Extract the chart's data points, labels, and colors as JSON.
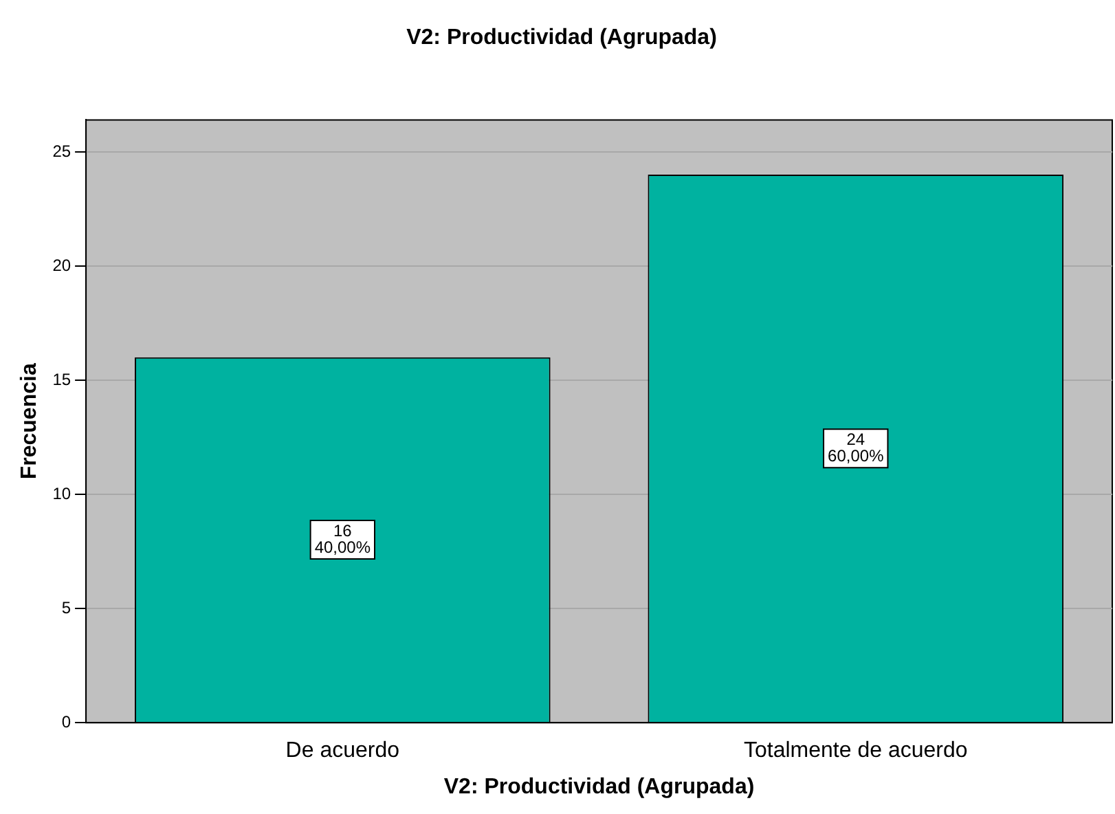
{
  "chart_data": {
    "type": "bar",
    "title": "V2: Productividad (Agrupada)",
    "xlabel": "V2: Productividad (Agrupada)",
    "ylabel": "Frecuencia",
    "categories": [
      "De acuerdo",
      "Totalmente de acuerdo"
    ],
    "values": [
      16,
      24
    ],
    "color": "#00b2a0",
    "value_labels": [
      "16\n40,00%",
      "24\n60,00%"
    ],
    "ylim": [
      0,
      26.4
    ],
    "yticks": [
      0,
      5,
      10,
      15,
      20,
      25
    ],
    "grid": "y",
    "legend": false
  }
}
